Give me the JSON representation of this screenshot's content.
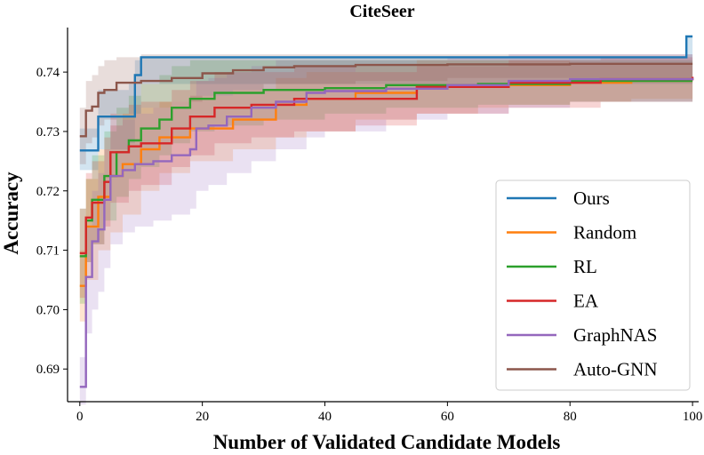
{
  "chart_data": {
    "type": "line",
    "title": "CiteSeer",
    "xlabel": "Number of Validated Candidate Models",
    "ylabel": "Accuracy",
    "xlim": [
      -2,
      101
    ],
    "ylim": [
      0.6845,
      0.7475
    ],
    "xticks": [
      0,
      20,
      40,
      60,
      80,
      100
    ],
    "yticks": [
      0.69,
      0.7,
      0.71,
      0.72,
      0.73,
      0.74
    ],
    "ytick_labels": [
      "0.69",
      "0.70",
      "0.71",
      "0.72",
      "0.73",
      "0.74"
    ],
    "legend_position": "lower-right",
    "grid": false,
    "series": [
      {
        "name": "Ours",
        "color": "#1f77b4",
        "x": [
          0,
          2,
          3,
          8,
          9,
          10,
          98,
          99,
          100
        ],
        "y": [
          0.7268,
          0.7268,
          0.7325,
          0.7325,
          0.7395,
          0.7425,
          0.7425,
          0.746,
          0.746
        ],
        "lower": [
          0.7235,
          0.7235,
          0.727,
          0.728,
          0.733,
          0.738,
          0.738,
          0.738,
          0.738
        ],
        "upper": [
          0.7305,
          0.7305,
          0.737,
          0.738,
          0.742,
          0.7425,
          0.7425,
          0.746,
          0.746
        ]
      },
      {
        "name": "Random",
        "color": "#ff7f0e",
        "x": [
          0,
          1,
          3,
          5,
          7,
          10,
          13,
          18,
          25,
          32,
          37,
          45,
          55,
          65,
          70,
          80,
          90,
          100
        ],
        "y": [
          0.704,
          0.714,
          0.719,
          0.7225,
          0.7245,
          0.727,
          0.729,
          0.7305,
          0.732,
          0.7345,
          0.7355,
          0.7365,
          0.7375,
          0.7375,
          0.7378,
          0.7382,
          0.7385,
          0.7385
        ],
        "lower": [
          0.698,
          0.705,
          0.71,
          0.713,
          0.716,
          0.72,
          0.723,
          0.725,
          0.727,
          0.729,
          0.73,
          0.732,
          0.733,
          0.734,
          0.7345,
          0.735,
          0.7355,
          0.7355
        ],
        "upper": [
          0.71,
          0.722,
          0.727,
          0.731,
          0.733,
          0.734,
          0.735,
          0.736,
          0.737,
          0.739,
          0.74,
          0.741,
          0.742,
          0.742,
          0.742,
          0.7415,
          0.7415,
          0.7415
        ]
      },
      {
        "name": "RL",
        "color": "#2ca02c",
        "x": [
          0,
          1,
          2,
          4,
          6,
          8,
          10,
          13,
          15,
          18,
          22,
          30,
          40,
          50,
          65,
          80,
          100
        ],
        "y": [
          0.709,
          0.715,
          0.7185,
          0.7225,
          0.7265,
          0.7285,
          0.7305,
          0.732,
          0.734,
          0.7355,
          0.7365,
          0.737,
          0.7373,
          0.7378,
          0.738,
          0.7385,
          0.7385
        ],
        "lower": [
          0.701,
          0.708,
          0.711,
          0.715,
          0.719,
          0.722,
          0.724,
          0.726,
          0.728,
          0.73,
          0.731,
          0.732,
          0.733,
          0.734,
          0.7345,
          0.735,
          0.735
        ],
        "upper": [
          0.717,
          0.722,
          0.726,
          0.73,
          0.734,
          0.736,
          0.738,
          0.7395,
          0.741,
          0.742,
          0.742,
          0.742,
          0.742,
          0.742,
          0.742,
          0.742,
          0.742
        ]
      },
      {
        "name": "EA",
        "color": "#d62728",
        "x": [
          0,
          1,
          2,
          4,
          5,
          8,
          10,
          15,
          18,
          22,
          28,
          35,
          45,
          55,
          70,
          85,
          100
        ],
        "y": [
          0.7095,
          0.7155,
          0.718,
          0.7215,
          0.7265,
          0.7275,
          0.728,
          0.7305,
          0.7325,
          0.734,
          0.7345,
          0.7355,
          0.7355,
          0.7375,
          0.7382,
          0.7388,
          0.7392
        ],
        "lower": [
          0.702,
          0.708,
          0.711,
          0.714,
          0.718,
          0.72,
          0.721,
          0.724,
          0.726,
          0.728,
          0.729,
          0.73,
          0.731,
          0.733,
          0.734,
          0.735,
          0.7355
        ],
        "upper": [
          0.717,
          0.723,
          0.725,
          0.729,
          0.733,
          0.7345,
          0.735,
          0.737,
          0.7385,
          0.74,
          0.74,
          0.741,
          0.74,
          0.741,
          0.742,
          0.7425,
          0.7425
        ]
      },
      {
        "name": "GraphNAS",
        "color": "#9467bd",
        "x": [
          0,
          1,
          2,
          3,
          4,
          5,
          7,
          9,
          12,
          15,
          18,
          19,
          21,
          24,
          28,
          32,
          37,
          40,
          50,
          60,
          70,
          80,
          100
        ],
        "y": [
          0.687,
          0.7055,
          0.7115,
          0.7135,
          0.7185,
          0.7225,
          0.7235,
          0.7245,
          0.725,
          0.726,
          0.727,
          0.7305,
          0.731,
          0.7325,
          0.734,
          0.735,
          0.7365,
          0.7368,
          0.7372,
          0.7378,
          0.7385,
          0.7388,
          0.739
        ],
        "lower": [
          0.684,
          0.696,
          0.7,
          0.703,
          0.707,
          0.711,
          0.713,
          0.714,
          0.715,
          0.716,
          0.717,
          0.72,
          0.721,
          0.723,
          0.725,
          0.727,
          0.729,
          0.73,
          0.732,
          0.733,
          0.734,
          0.735,
          0.735
        ],
        "upper": [
          0.692,
          0.714,
          0.72,
          0.723,
          0.727,
          0.731,
          0.732,
          0.733,
          0.734,
          0.735,
          0.736,
          0.7385,
          0.739,
          0.74,
          0.741,
          0.742,
          0.742,
          0.742,
          0.742,
          0.7425,
          0.743,
          0.743,
          0.743
        ]
      },
      {
        "name": "Auto-GNN",
        "color": "#8c564b",
        "x": [
          0,
          1,
          2,
          3,
          4,
          6,
          10,
          15,
          20,
          25,
          30,
          35,
          45,
          60,
          80,
          100
        ],
        "y": [
          0.7292,
          0.7335,
          0.7342,
          0.7365,
          0.737,
          0.7382,
          0.7385,
          0.739,
          0.7398,
          0.7403,
          0.7408,
          0.741,
          0.7412,
          0.7413,
          0.7414,
          0.7414
        ],
        "lower": [
          0.7245,
          0.728,
          0.729,
          0.731,
          0.732,
          0.733,
          0.734,
          0.735,
          0.736,
          0.737,
          0.738,
          0.738,
          0.7385,
          0.739,
          0.739,
          0.739
        ],
        "upper": [
          0.734,
          0.7385,
          0.7395,
          0.741,
          0.742,
          0.7425,
          0.743,
          0.743,
          0.743,
          0.743,
          0.743,
          0.743,
          0.743,
          0.743,
          0.743,
          0.743
        ]
      }
    ]
  }
}
